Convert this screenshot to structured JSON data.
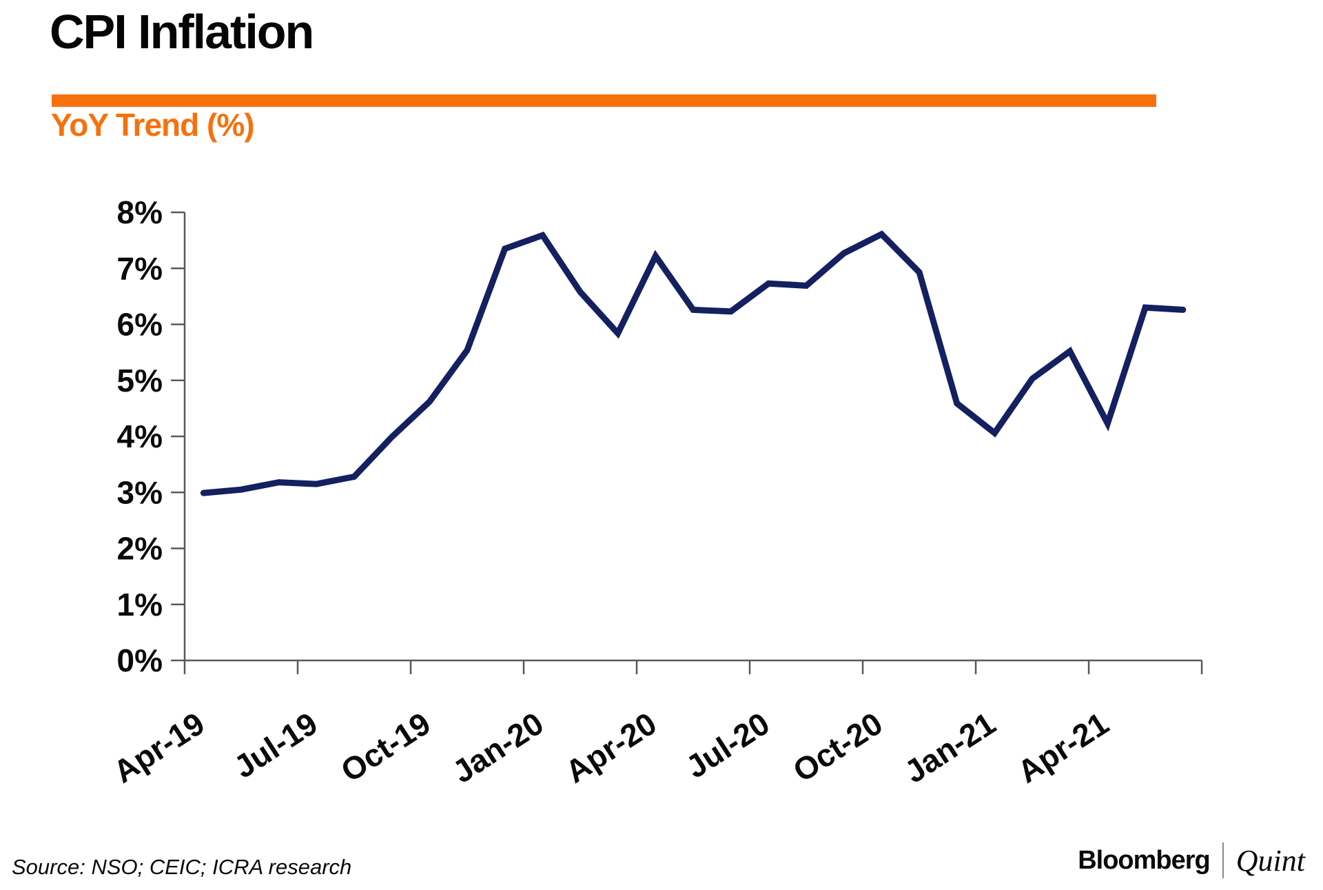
{
  "header": {
    "title": "CPI Inflation",
    "subtitle": "YoY Trend (%)"
  },
  "footer": {
    "source": "Source: NSO; CEIC; ICRA research",
    "brand_left": "Bloomberg",
    "brand_right": "Quint"
  },
  "colors": {
    "accent_orange": "#F8700C",
    "line_navy": "#14205F",
    "axis_gray": "#595959",
    "text_black": "#0A0A0A"
  },
  "chart_data": {
    "type": "line",
    "title": "CPI Inflation",
    "subtitle": "YoY Trend (%)",
    "x": [
      "Apr-19",
      "May-19",
      "Jun-19",
      "Jul-19",
      "Aug-19",
      "Sep-19",
      "Oct-19",
      "Nov-19",
      "Dec-19",
      "Jan-20",
      "Feb-20",
      "Mar-20",
      "Apr-20",
      "May-20",
      "Jun-20",
      "Jul-20",
      "Aug-20",
      "Sep-20",
      "Oct-20",
      "Nov-20",
      "Dec-20",
      "Jan-21",
      "Feb-21",
      "Mar-21",
      "Apr-21",
      "May-21",
      "Jun-21"
    ],
    "values": [
      2.99,
      3.05,
      3.18,
      3.15,
      3.28,
      3.99,
      4.62,
      5.54,
      7.35,
      7.59,
      6.58,
      5.84,
      7.22,
      6.26,
      6.23,
      6.73,
      6.69,
      7.27,
      7.61,
      6.93,
      4.59,
      4.06,
      5.03,
      5.52,
      4.23,
      6.3,
      6.26
    ],
    "series": [
      {
        "name": "CPI Inflation YoY %",
        "values": [
          2.99,
          3.05,
          3.18,
          3.15,
          3.28,
          3.99,
          4.62,
          5.54,
          7.35,
          7.59,
          6.58,
          5.84,
          7.22,
          6.26,
          6.23,
          6.73,
          6.69,
          7.27,
          7.61,
          6.93,
          4.59,
          4.06,
          5.03,
          5.52,
          4.23,
          6.3,
          6.26
        ]
      }
    ],
    "xlabel": "",
    "ylabel": "",
    "ylim": [
      0,
      8
    ],
    "yticks": [
      0,
      1,
      2,
      3,
      4,
      5,
      6,
      7,
      8
    ],
    "ytick_suffix": "%",
    "xtick_labels": [
      "Apr-19",
      "Jul-19",
      "Oct-19",
      "Jan-20",
      "Apr-20",
      "Jul-20",
      "Oct-20",
      "Jan-21",
      "Apr-21"
    ],
    "xtick_every": 3,
    "grid": false,
    "legend_position": "none",
    "line_color": "#14205F"
  }
}
